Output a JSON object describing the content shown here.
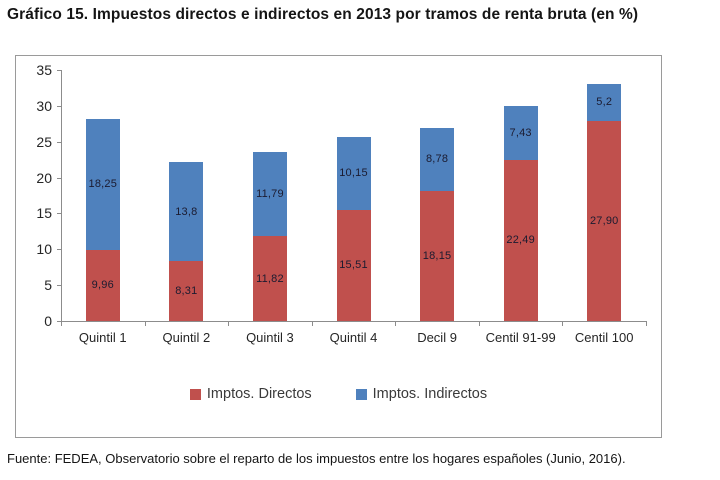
{
  "page": {
    "title": "Gráfico 15. Impuestos directos e indirectos en 2013 por tramos de renta bruta (en %)",
    "source": "Fuente: FEDEA, Observatorio sobre el reparto de los impuestos entre los hogares españoles (Junio, 2016)."
  },
  "chart_data": {
    "type": "bar",
    "stacked": true,
    "title": "Gráfico 15. Impuestos directos e indirectos en 2013 por tramos de renta bruta (en %)",
    "categories": [
      "Quintil 1",
      "Quintil 2",
      "Quintil 3",
      "Quintil 4",
      "Decil 9",
      "Centil 91-99",
      "Centil 100"
    ],
    "series": [
      {
        "name": "Imptos. Directos",
        "color": "#C0504D",
        "values": [
          9.96,
          8.31,
          11.82,
          15.51,
          18.15,
          22.49,
          27.9
        ],
        "labels": [
          "9,96",
          "8,31",
          "11,82",
          "15,51",
          "18,15",
          "22,49",
          "27,90"
        ]
      },
      {
        "name": "Imptos. Indirectos",
        "color": "#4F81BD",
        "values": [
          18.25,
          13.8,
          11.79,
          10.15,
          8.78,
          7.43,
          5.2
        ],
        "labels": [
          "18,25",
          "13,8",
          "11,79",
          "10,15",
          "8,78",
          "7,43",
          "5,2"
        ]
      }
    ],
    "xlabel": "",
    "ylabel": "",
    "ylim": [
      0,
      35
    ],
    "yticks": [
      0,
      5,
      10,
      15,
      20,
      25,
      30,
      35
    ],
    "grid": false,
    "legend_position": "bottom"
  }
}
